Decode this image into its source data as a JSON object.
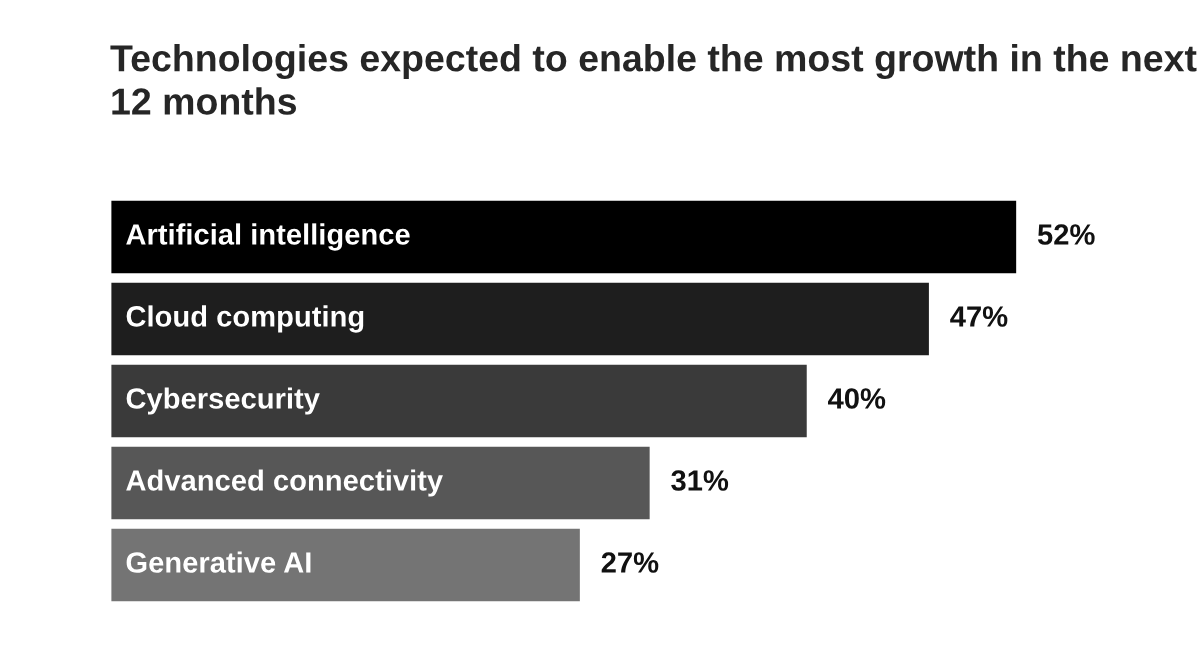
{
  "chart_data": {
    "type": "bar",
    "orientation": "horizontal",
    "title": "Technologies expected to enable the most growth in the next 12 months",
    "categories": [
      "Artificial intelligence",
      "Cloud computing",
      "Cybersecurity",
      "Advanced connectivity",
      "Generative AI"
    ],
    "values": [
      52,
      47,
      40,
      31,
      27
    ],
    "colors": [
      "#000000",
      "#1e1e1e",
      "#3a3a3a",
      "#575757",
      "#747474"
    ],
    "value_labels": [
      "52%",
      "47%",
      "40%",
      "31%",
      "27%"
    ]
  }
}
